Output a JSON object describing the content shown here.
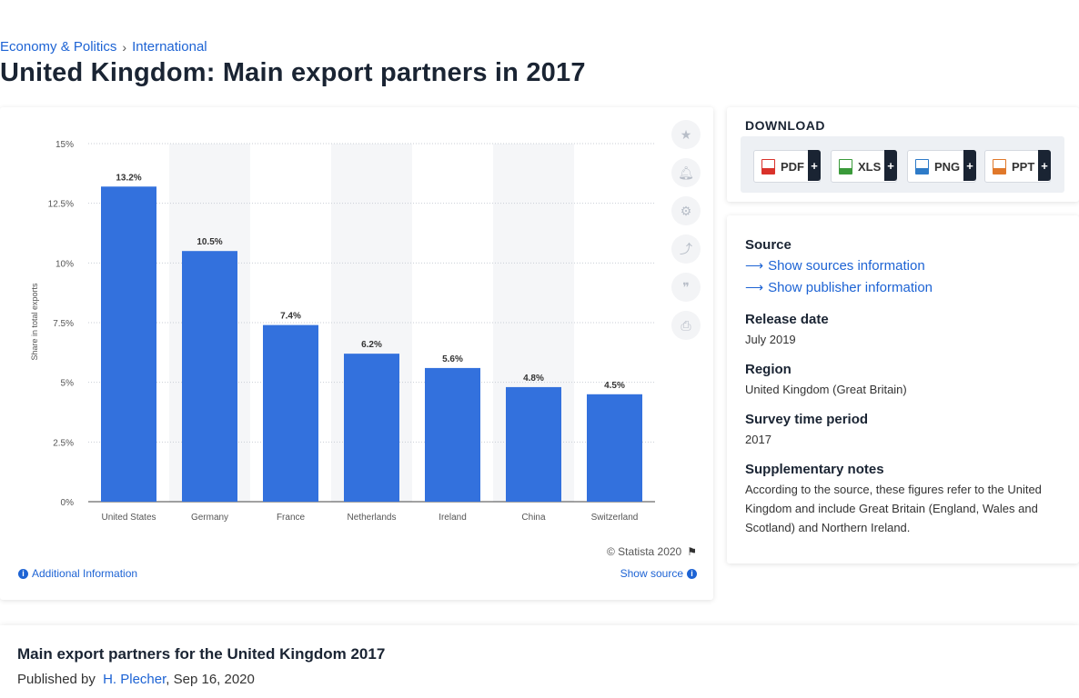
{
  "breadcrumb": {
    "item1": "Economy & Politics",
    "separator": "›",
    "item2": "International"
  },
  "title": "United Kingdom: Main export partners in 2017",
  "chart_data": {
    "type": "bar",
    "categories": [
      "United States",
      "Germany",
      "France",
      "Netherlands",
      "Ireland",
      "China",
      "Switzerland"
    ],
    "values": [
      13.2,
      10.5,
      7.4,
      6.2,
      5.6,
      4.8,
      4.5
    ],
    "value_labels": [
      "13.2%",
      "10.5%",
      "7.4%",
      "6.2%",
      "5.6%",
      "4.8%",
      "4.5%"
    ],
    "ylabel": "Share in total exports",
    "ylim": [
      0,
      15
    ],
    "yticks": [
      0,
      2.5,
      5,
      7.5,
      10,
      12.5,
      15
    ],
    "ytick_labels": [
      "0%",
      "2.5%",
      "5%",
      "7.5%",
      "10%",
      "12.5%",
      "15%"
    ],
    "bar_color": "#3371dd",
    "alternate_band_color": "#f5f6f8",
    "grid": true
  },
  "chart_footer": {
    "copyright": "© Statista 2020",
    "additional_info": "Additional Information",
    "show_source": "Show source"
  },
  "tools": [
    "star-icon",
    "bell-icon",
    "gear-icon",
    "share-icon",
    "quote-icon",
    "print-icon"
  ],
  "download": {
    "title": "DOWNLOAD",
    "buttons": [
      {
        "label": "PDF",
        "plus": "+",
        "color": "#d9322b"
      },
      {
        "label": "XLS",
        "plus": "+",
        "color": "#3a9a3a"
      },
      {
        "label": "PNG",
        "plus": "+",
        "color": "#2e7bc8"
      },
      {
        "label": "PPT",
        "plus": "+",
        "color": "#e0782a"
      }
    ]
  },
  "meta": {
    "source_label": "Source",
    "sources_link": "Show sources information",
    "publisher_link": "Show publisher information",
    "release_label": "Release date",
    "release_value": "July 2019",
    "region_label": "Region",
    "region_value": "United Kingdom (Great Britain)",
    "survey_label": "Survey time period",
    "survey_value": "2017",
    "notes_label": "Supplementary notes",
    "notes_value": "According to the source, these figures refer to the United Kingdom and include Great Britain (England, Wales and Scotland) and Northern Ireland."
  },
  "article": {
    "heading": "Main export partners for the United Kingdom 2017",
    "published_by": "Published by",
    "author": "H. Plecher",
    "date": ", Sep 16, 2020"
  }
}
